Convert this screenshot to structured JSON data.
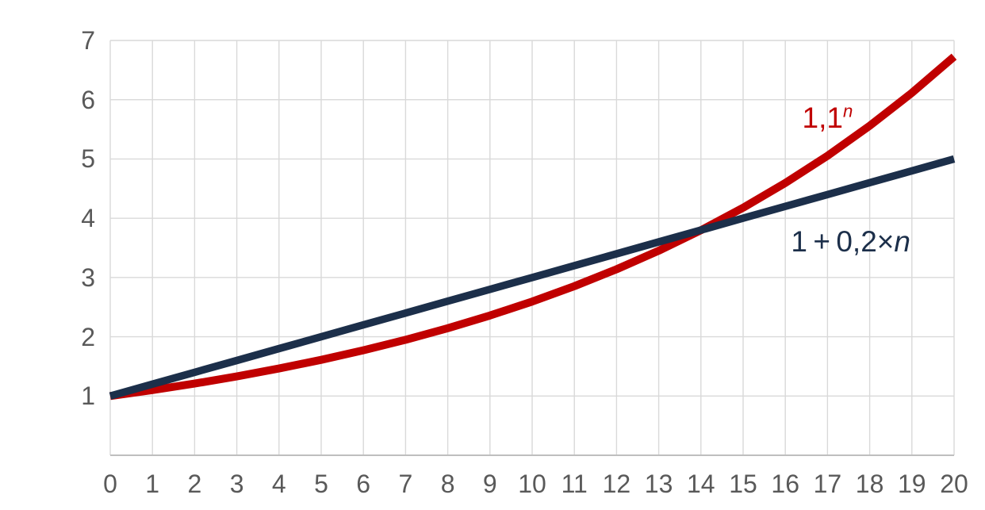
{
  "chart_data": {
    "type": "line",
    "title": "",
    "xlabel": "",
    "ylabel": "",
    "xlim": [
      0,
      20
    ],
    "ylim": [
      0,
      7
    ],
    "grid": true,
    "legend_position": "none",
    "background_color": "#ffffff",
    "gridline_color": "#d9d9d9",
    "axis_line_color": "#bfbfbf",
    "tick_label_color": "#595959",
    "x": [
      0,
      1,
      2,
      3,
      4,
      5,
      6,
      7,
      8,
      9,
      10,
      11,
      12,
      13,
      14,
      15,
      16,
      17,
      18,
      19,
      20
    ],
    "x_ticks": [
      "0",
      "1",
      "2",
      "3",
      "4",
      "5",
      "6",
      "7",
      "8",
      "9",
      "10",
      "11",
      "12",
      "13",
      "14",
      "15",
      "16",
      "17",
      "18",
      "19",
      "20"
    ],
    "y_ticks": [
      "1",
      "2",
      "3",
      "4",
      "5",
      "6",
      "7"
    ],
    "y_tick_values": [
      1,
      2,
      3,
      4,
      5,
      6,
      7
    ],
    "x_gridline_values": [
      0,
      1,
      2,
      3,
      4,
      5,
      6,
      7,
      8,
      9,
      10,
      11,
      12,
      13,
      14,
      15,
      16,
      17,
      18,
      19,
      20
    ],
    "y_gridline_values": [
      1,
      2,
      3,
      4,
      5,
      6,
      7
    ],
    "series": [
      {
        "name": "1,1^n",
        "color": "#c00000",
        "line_width": 10,
        "values": [
          1,
          1.1,
          1.21,
          1.331,
          1.4641,
          1.6105,
          1.7716,
          1.9487,
          2.1436,
          2.3579,
          2.5937,
          2.8531,
          3.1384,
          3.4523,
          3.7975,
          4.1772,
          4.595,
          5.0545,
          5.5599,
          6.1159,
          6.7275
        ]
      },
      {
        "name": "1 + 0,2×n",
        "color": "#1c2f4a",
        "line_width": 9.5,
        "values": [
          1,
          1.2,
          1.4,
          1.6,
          1.8,
          2,
          2.2,
          2.4,
          2.6,
          2.8,
          3,
          3.2,
          3.4,
          3.6,
          3.8,
          4,
          4.2,
          4.4,
          4.6,
          4.8,
          5
        ]
      }
    ],
    "series_labels": {
      "exponential": {
        "base": "1,1",
        "exponent": "n",
        "color": "#c00000",
        "anchor_x": 17.0,
        "anchor_y": 5.69
      },
      "linear": {
        "prefix": "1 + 0,2×",
        "variable": "n",
        "color": "#1c2f4a",
        "anchor_x": 17.55,
        "anchor_y": 3.6
      }
    },
    "intersection_note": {
      "x": 14,
      "y": 3.8
    }
  }
}
